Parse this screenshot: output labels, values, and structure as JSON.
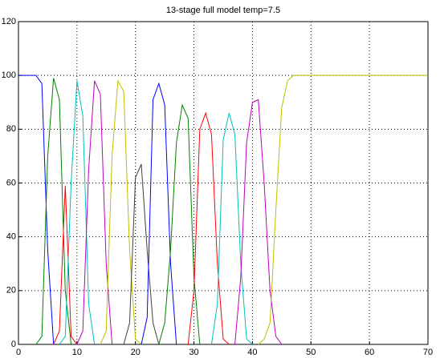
{
  "chart_data": {
    "type": "line",
    "title": "13-stage full model temp=7.5",
    "xlim": [
      0,
      70
    ],
    "ylim": [
      0,
      120
    ],
    "xticks": [
      0,
      10,
      20,
      30,
      40,
      50,
      60,
      70
    ],
    "yticks": [
      0,
      20,
      40,
      60,
      80,
      100,
      120
    ],
    "grid": true,
    "series": [
      {
        "color": "#0000ff",
        "x": [
          0,
          1,
          2,
          3,
          4,
          5,
          6
        ],
        "values": [
          100,
          100,
          100,
          100,
          97,
          35,
          0
        ]
      },
      {
        "color": "#008000",
        "x": [
          3,
          4,
          5,
          6,
          7,
          8,
          9
        ],
        "values": [
          0,
          3,
          70,
          99,
          91,
          20,
          0
        ]
      },
      {
        "color": "#ff0000",
        "x": [
          6,
          7,
          8,
          9,
          10
        ],
        "values": [
          0,
          5,
          59,
          3,
          0
        ]
      },
      {
        "color": "#00bfbf",
        "x": [
          7,
          8,
          9,
          10,
          11,
          12,
          13
        ],
        "values": [
          0,
          3,
          60,
          98,
          85,
          15,
          0
        ]
      },
      {
        "color": "#bf00bf",
        "x": [
          10,
          11,
          12,
          13,
          14,
          15,
          16
        ],
        "values": [
          0,
          5,
          65,
          98,
          93,
          30,
          0
        ]
      },
      {
        "color": "#bfbf00",
        "x": [
          14,
          15,
          16,
          17,
          18,
          19,
          20,
          21
        ],
        "values": [
          0,
          5,
          70,
          98,
          94,
          35,
          2,
          0
        ]
      },
      {
        "color": "#404040",
        "x": [
          18,
          19,
          20,
          21,
          22,
          23,
          24
        ],
        "values": [
          0,
          8,
          62,
          67,
          35,
          8,
          0
        ]
      },
      {
        "color": "#0000ff",
        "x": [
          21,
          22,
          23,
          24,
          25,
          26,
          27
        ],
        "values": [
          0,
          10,
          91,
          97,
          89,
          30,
          0
        ]
      },
      {
        "color": "#008000",
        "x": [
          24,
          25,
          26,
          27,
          28,
          29,
          30,
          31
        ],
        "values": [
          0,
          8,
          35,
          75,
          89,
          84,
          25,
          0
        ]
      },
      {
        "color": "#ff0000",
        "x": [
          29,
          30,
          31,
          32,
          33,
          34,
          35,
          36
        ],
        "values": [
          0,
          20,
          80,
          86,
          78,
          30,
          2,
          0
        ]
      },
      {
        "color": "#00bfbf",
        "x": [
          33,
          34,
          35,
          36,
          37,
          38,
          39,
          40
        ],
        "values": [
          0,
          15,
          76,
          86,
          78,
          30,
          2,
          0
        ]
      },
      {
        "color": "#bf00bf",
        "x": [
          37,
          38,
          39,
          40,
          41,
          42,
          43,
          44,
          45
        ],
        "values": [
          0,
          25,
          75,
          90,
          91,
          60,
          20,
          3,
          0
        ]
      },
      {
        "color": "#bfbf00",
        "x": [
          41,
          42,
          43,
          44,
          45,
          46,
          47,
          70
        ],
        "values": [
          0,
          2,
          8,
          50,
          88,
          98,
          100,
          100
        ]
      }
    ]
  }
}
